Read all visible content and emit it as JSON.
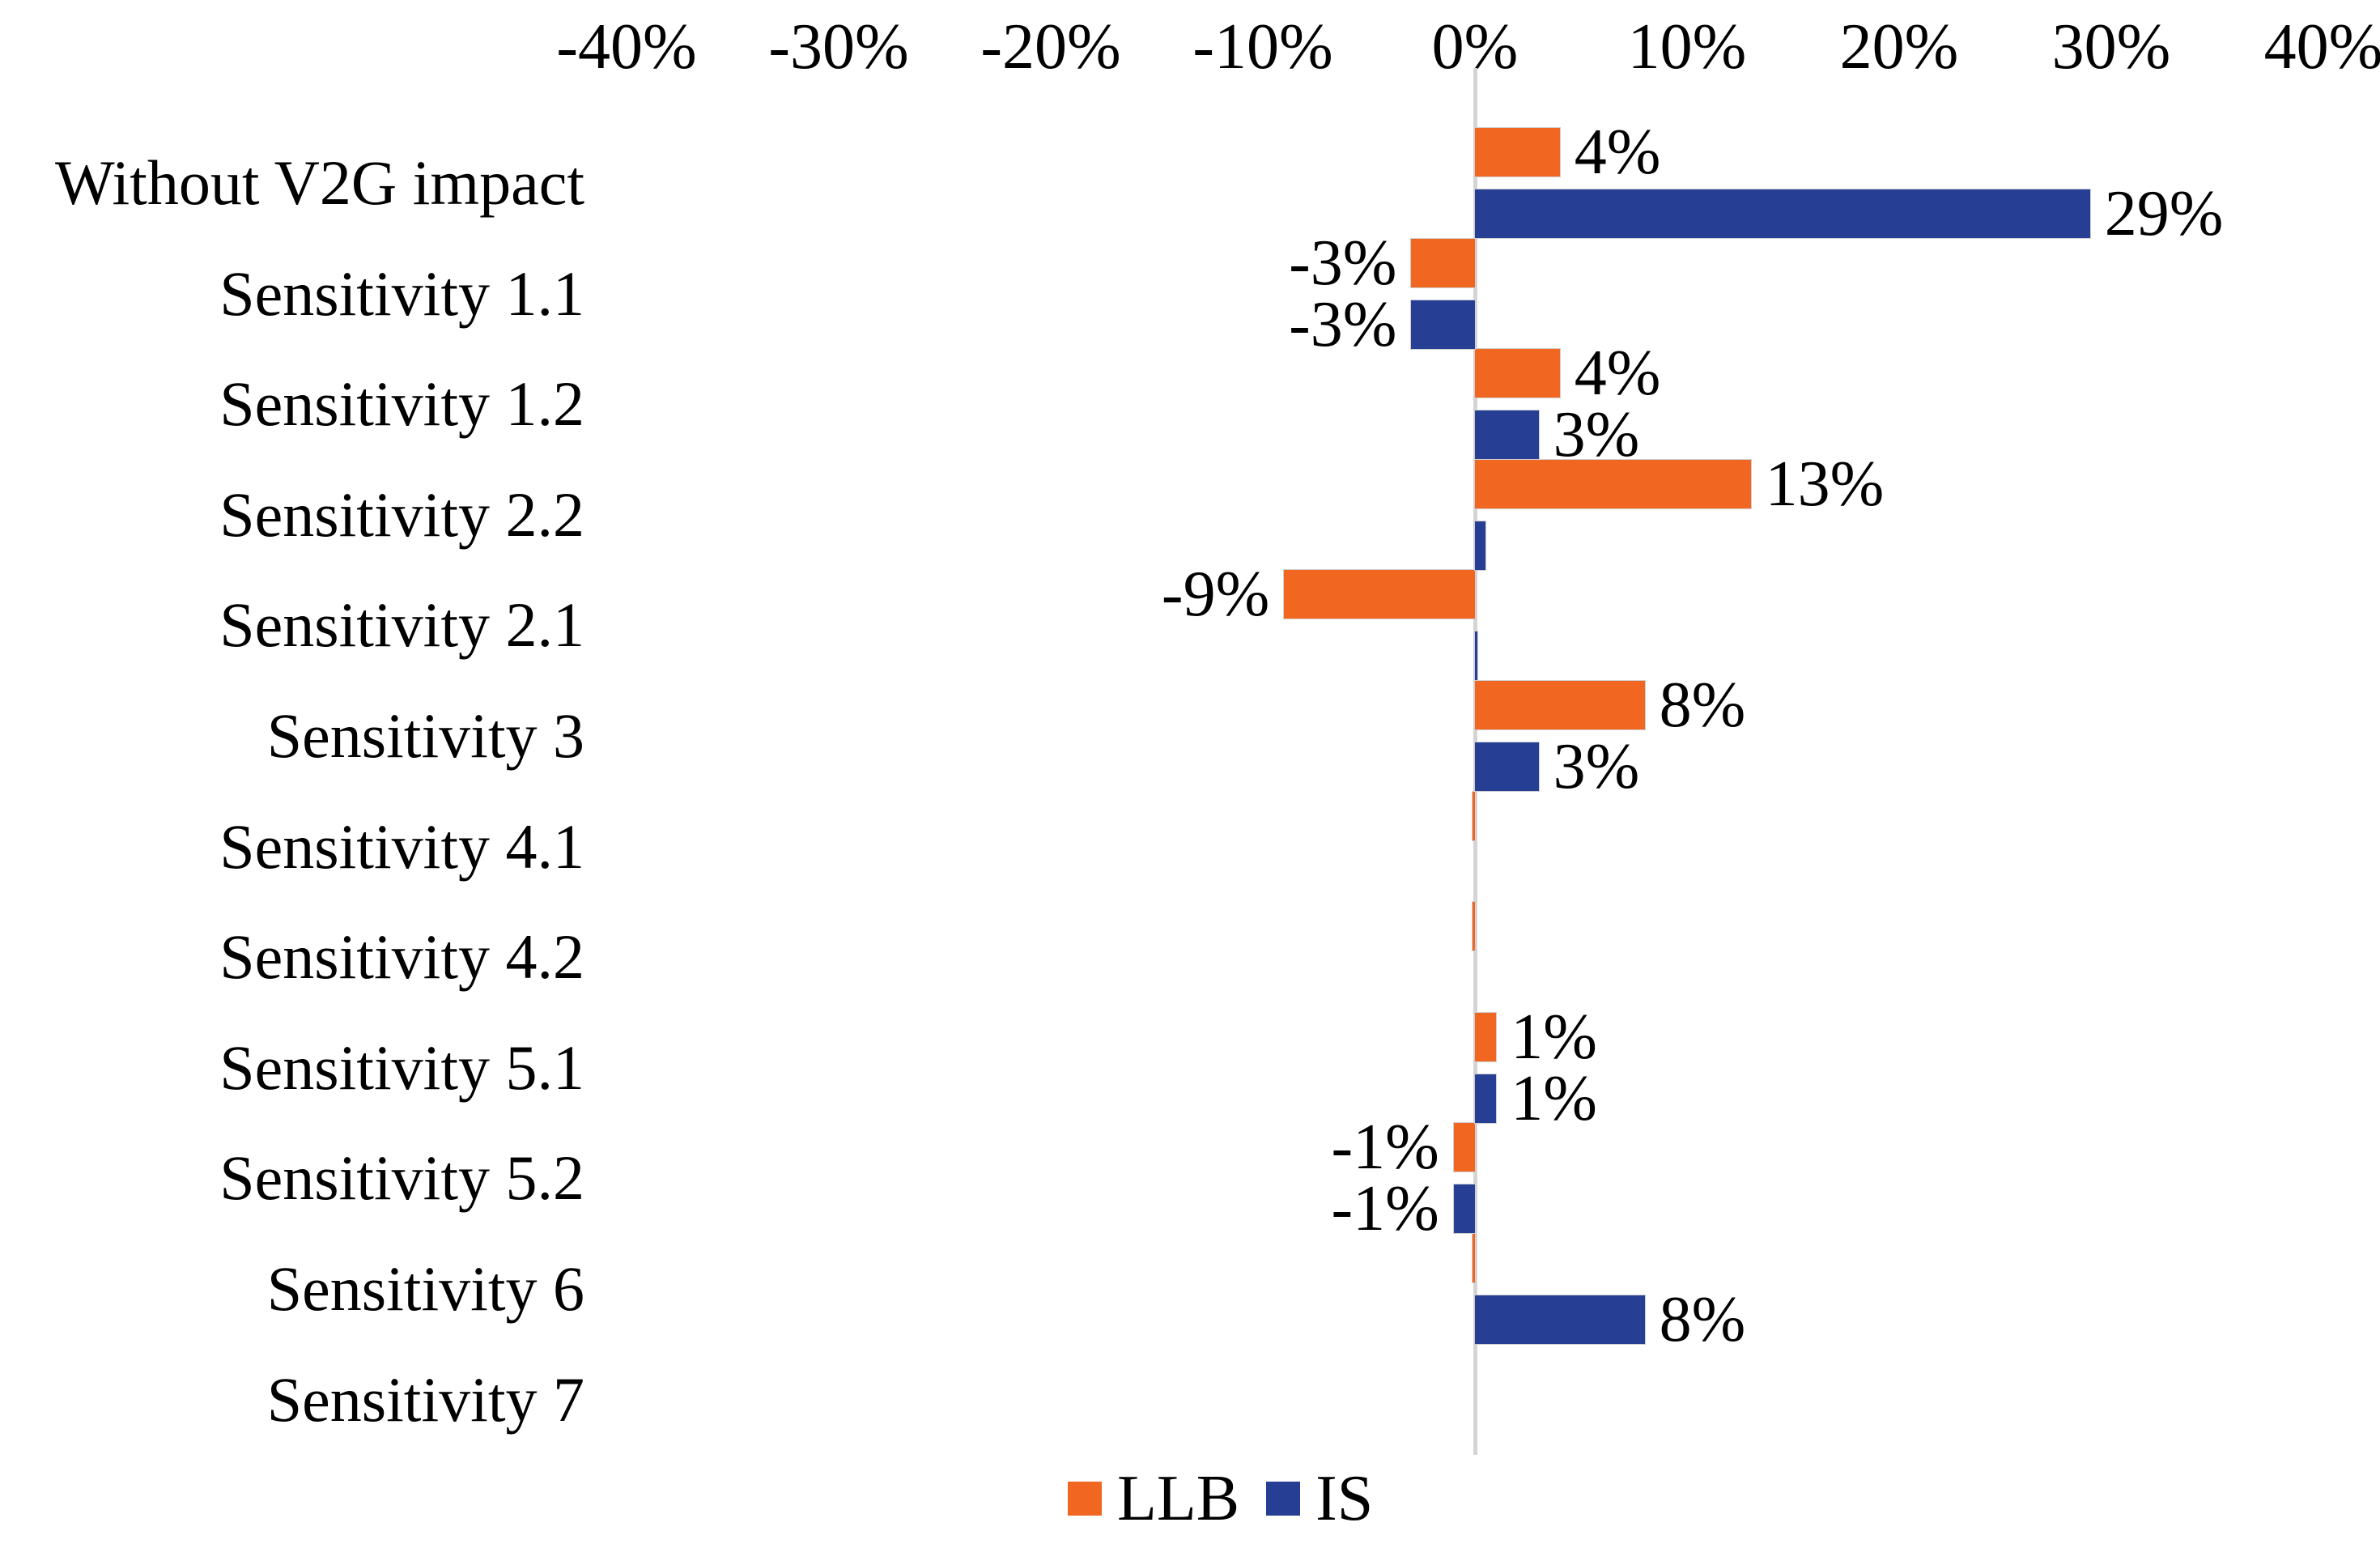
{
  "chart_data": {
    "type": "bar",
    "orientation": "horizontal",
    "title": "",
    "categories": [
      "Without V2G impact",
      "Sensitivity 1.1",
      "Sensitivity 1.2",
      "Sensitivity 2.2",
      "Sensitivity 2.1",
      "Sensitivity 3",
      "Sensitivity 4.1",
      "Sensitivity 4.2",
      "Sensitivity 5.1",
      "Sensitivity 5.2",
      "Sensitivity 6",
      "Sensitivity 7"
    ],
    "series": [
      {
        "name": "LLB",
        "color": "#F16722",
        "values": [
          4,
          -3,
          4,
          13,
          -9,
          8,
          -0.1,
          -0.1,
          1,
          -1,
          -0.1,
          0
        ],
        "data_labels": [
          "4%",
          "-3%",
          "4%",
          "13%",
          "-9%",
          "8%",
          "",
          "",
          "1%",
          "-1%",
          "",
          ""
        ]
      },
      {
        "name": "IS",
        "color": "#263F94",
        "values": [
          29,
          -3,
          3,
          0.5,
          0.1,
          3,
          0,
          0,
          1,
          -1,
          8,
          0
        ],
        "data_labels": [
          "29%",
          "-3%",
          "3%",
          "",
          "",
          "3%",
          "",
          "",
          "1%",
          "-1%",
          "8%",
          ""
        ]
      }
    ],
    "x_axis": {
      "position": "top",
      "min": -40,
      "max": 40,
      "tick_step": 10,
      "tick_labels": [
        "-40%",
        "-30%",
        "-20%",
        "-10%",
        "0%",
        "10%",
        "20%",
        "30%",
        "40%"
      ]
    },
    "legend": {
      "position": "bottom",
      "entries": [
        {
          "label": "LLB",
          "color": "#F16722"
        },
        {
          "label": "IS",
          "color": "#263F94"
        }
      ]
    },
    "grid": false,
    "zero_line_color": "#D4D4D4",
    "text_color": "#000000",
    "background_color": "#FFFFFF"
  }
}
